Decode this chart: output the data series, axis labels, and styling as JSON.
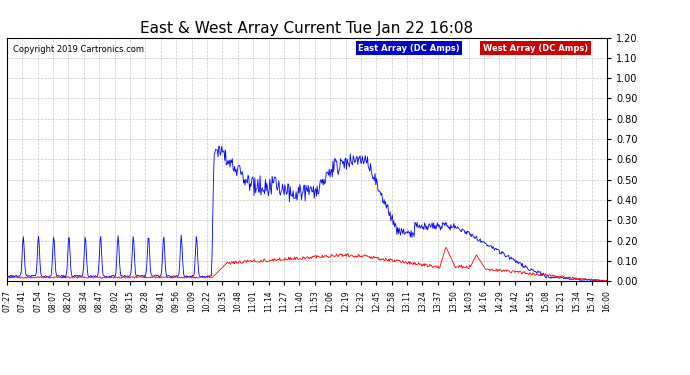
{
  "title": "East & West Array Current Tue Jan 22 16:08",
  "copyright": "Copyright 2019 Cartronics.com",
  "legend_east": "East Array (DC Amps)",
  "legend_west": "West Array (DC Amps)",
  "east_color": "#0000ff",
  "west_color": "#ff0000",
  "east_legend_bg": "#0000cc",
  "west_legend_bg": "#cc0000",
  "ylim": [
    0.0,
    1.2
  ],
  "yticks": [
    0.0,
    0.1,
    0.2,
    0.3,
    0.4,
    0.5,
    0.6,
    0.7,
    0.8,
    0.9,
    1.0,
    1.1,
    1.2
  ],
  "background_color": "#ffffff",
  "plot_bg": "#ffffff",
  "grid_color": "#bbbbbb",
  "title_fontsize": 11,
  "tick_fontsize": 5.5,
  "ytick_fontsize": 7,
  "copyright_fontsize": 6,
  "legend_fontsize": 6,
  "x_tick_labels": [
    "07:27",
    "07:41",
    "07:54",
    "08:07",
    "08:20",
    "08:34",
    "08:47",
    "09:02",
    "09:15",
    "09:28",
    "09:41",
    "09:56",
    "10:09",
    "10:22",
    "10:35",
    "10:48",
    "11:01",
    "11:14",
    "11:27",
    "11:40",
    "11:53",
    "12:06",
    "12:19",
    "12:32",
    "12:45",
    "12:58",
    "13:11",
    "13:24",
    "13:37",
    "13:50",
    "14:03",
    "14:16",
    "14:29",
    "14:42",
    "14:55",
    "15:08",
    "15:21",
    "15:34",
    "15:47",
    "16:00"
  ]
}
